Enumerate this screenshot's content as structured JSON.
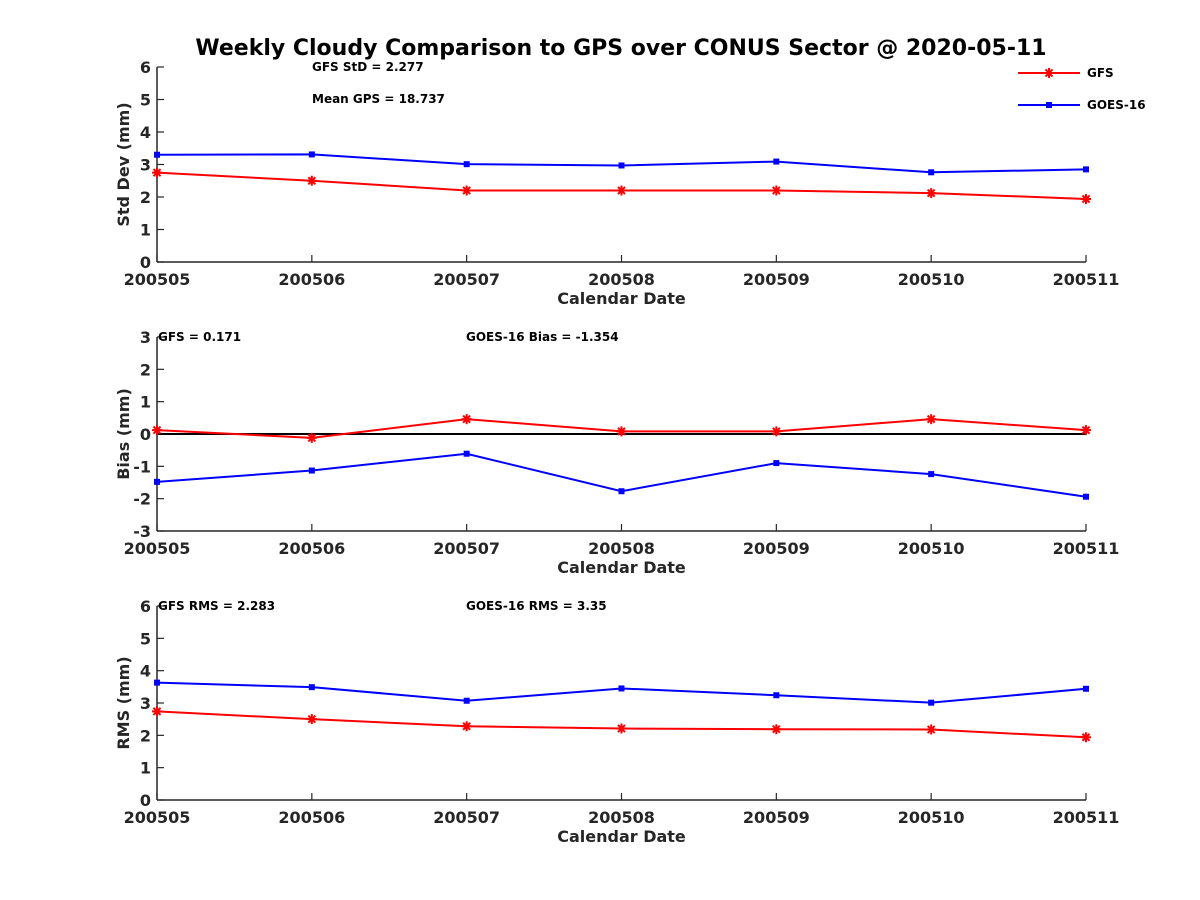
{
  "chart_data": {
    "title": "Weekly Cloudy Comparison to GPS over CONUS Sector @ 2020-05-11",
    "type": "line",
    "grid": false,
    "legend": {
      "placement": "top-right",
      "entries": [
        {
          "name": "GFS",
          "color": "#ff0000",
          "marker": "star"
        },
        {
          "name": "GOES-16",
          "color": "#0000ff",
          "marker": "square"
        }
      ]
    },
    "panels": [
      {
        "type": "line",
        "xlabel": "Calendar Date",
        "ylabel": "Std Dev (mm)",
        "ylim": [
          0,
          6
        ],
        "yticks": [
          "0",
          "1",
          "2",
          "3",
          "4",
          "5",
          "6"
        ],
        "categories": [
          "200505",
          "200506",
          "200507",
          "200508",
          "200509",
          "200510",
          "200511"
        ],
        "annotations": [
          "GFS StD = 2.277",
          "Mean GPS = 18.737"
        ],
        "zero_line": false,
        "series": [
          {
            "name": "GFS",
            "color": "#ff0000",
            "marker": "star",
            "values": [
              2.75,
              2.5,
              2.2,
              2.2,
              2.2,
              2.12,
              1.94
            ]
          },
          {
            "name": "GOES-16",
            "color": "#0000ff",
            "marker": "square",
            "values": [
              3.3,
              3.31,
              3.01,
              2.97,
              3.09,
              2.76,
              2.85
            ]
          }
        ]
      },
      {
        "type": "line",
        "xlabel": "Calendar Date",
        "ylabel": "Bias (mm)",
        "ylim": [
          -3,
          3
        ],
        "yticks": [
          "-3",
          "-2",
          "-1",
          "0",
          "1",
          "2",
          "3"
        ],
        "categories": [
          "200505",
          "200506",
          "200507",
          "200508",
          "200509",
          "200510",
          "200511"
        ],
        "annotations": [
          "GFS = 0.171",
          "GOES-16 Bias  = -1.354"
        ],
        "zero_line": true,
        "series": [
          {
            "name": "GFS",
            "color": "#ff0000",
            "marker": "star",
            "values": [
              0.12,
              -0.12,
              0.46,
              0.08,
              0.08,
              0.46,
              0.12
            ]
          },
          {
            "name": "GOES-16",
            "color": "#0000ff",
            "marker": "square",
            "values": [
              -1.48,
              -1.13,
              -0.61,
              -1.77,
              -0.9,
              -1.24,
              -1.94
            ]
          }
        ]
      },
      {
        "type": "line",
        "xlabel": "Calendar Date",
        "ylabel": "RMS (mm)",
        "ylim": [
          0,
          6
        ],
        "yticks": [
          "0",
          "1",
          "2",
          "3",
          "4",
          "5",
          "6"
        ],
        "categories": [
          "200505",
          "200506",
          "200507",
          "200508",
          "200509",
          "200510",
          "200511"
        ],
        "annotations": [
          "GFS RMS = 2.283",
          "GOES-16 RMS = 3.35"
        ],
        "zero_line": false,
        "series": [
          {
            "name": "GFS",
            "color": "#ff0000",
            "marker": "star",
            "values": [
              2.74,
              2.5,
              2.28,
              2.21,
              2.19,
              2.18,
              1.94
            ]
          },
          {
            "name": "GOES-16",
            "color": "#0000ff",
            "marker": "square",
            "values": [
              3.63,
              3.49,
              3.07,
              3.45,
              3.24,
              3.01,
              3.44
            ]
          }
        ]
      }
    ]
  }
}
